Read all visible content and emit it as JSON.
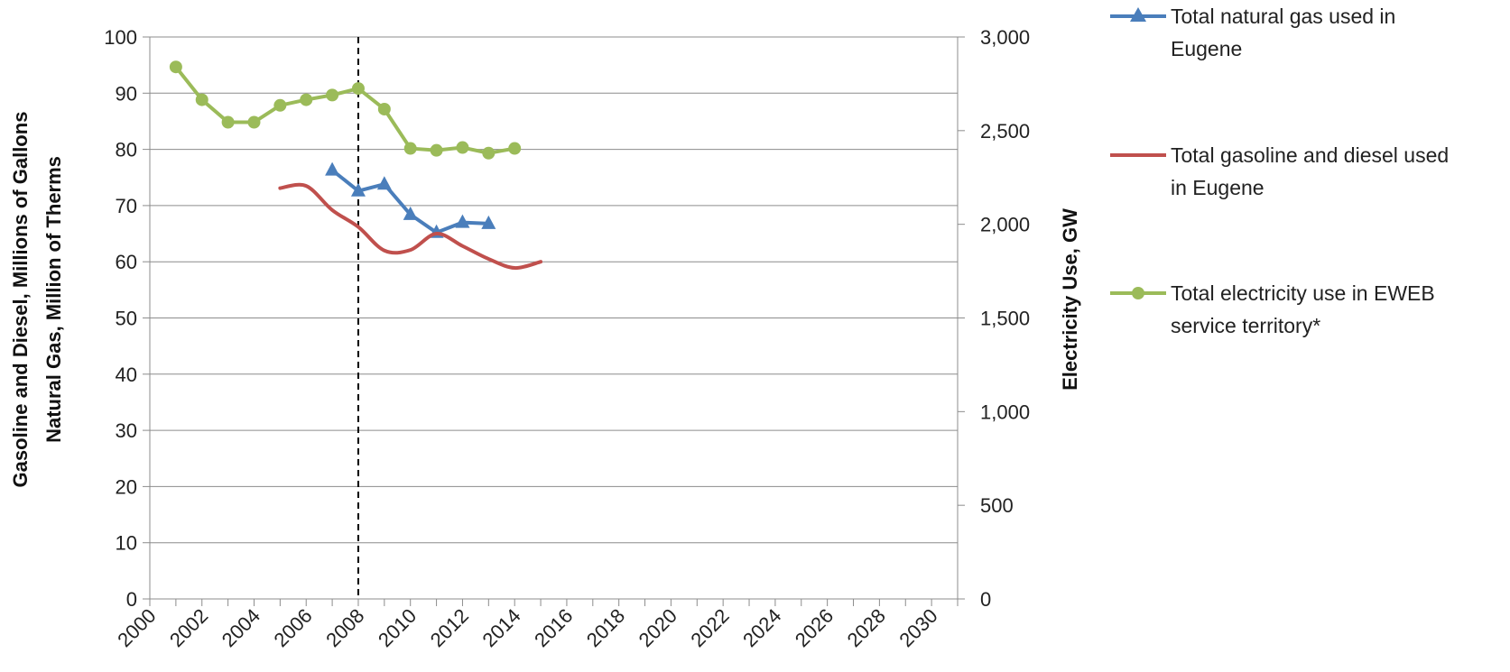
{
  "chart_data": {
    "type": "line",
    "x_axis": {
      "range": [
        2000,
        2031
      ],
      "tick_labels": [
        "2000",
        "2002",
        "2004",
        "2006",
        "2008",
        "2010",
        "2012",
        "2014",
        "2016",
        "2018",
        "2020",
        "2022",
        "2024",
        "2026",
        "2028",
        "2030"
      ]
    },
    "y_axis_left": {
      "label_line1": "Gasoline and Diesel, Millions of Gallons",
      "label_line2": "Natural Gas, Million of Therms",
      "range": [
        0,
        100
      ],
      "tick_labels": [
        "0",
        "10",
        "20",
        "30",
        "40",
        "50",
        "60",
        "70",
        "80",
        "90",
        "100"
      ]
    },
    "y_axis_right": {
      "label": "Electricity Use, GW",
      "range": [
        0,
        3000
      ],
      "tick_labels": [
        "0",
        "500",
        "1,000",
        "1,500",
        "2,000",
        "2,500",
        "3,000"
      ]
    },
    "grid": true,
    "reference_line": {
      "x": 2008,
      "style": "dashed",
      "color": "#000000"
    },
    "legend_position": "right",
    "series": [
      {
        "name_line1": "Total natural gas used in",
        "name_line2": "Eugene",
        "axis": "left",
        "marker": "triangle",
        "color": "#4a7ebb",
        "smooth": false,
        "x": [
          2007,
          2008,
          2009,
          2010,
          2011,
          2012,
          2013
        ],
        "y": [
          76.3,
          72.6,
          73.8,
          68.4,
          65.2,
          67.0,
          66.8
        ]
      },
      {
        "name_line1": "Total gasoline and diesel used",
        "name_line2": "in Eugene",
        "axis": "left",
        "marker": "none",
        "color": "#c0504d",
        "smooth": true,
        "x": [
          2005,
          2006,
          2007,
          2008,
          2009,
          2010,
          2011,
          2012,
          2013,
          2014,
          2015
        ],
        "y": [
          73.1,
          73.5,
          69.2,
          66.2,
          62.0,
          62.1,
          65.0,
          62.8,
          60.5,
          58.9,
          60.0
        ]
      },
      {
        "name_line1": "Total electricity use in EWEB",
        "name_line2": "service territory*",
        "axis": "right",
        "marker": "circle",
        "color": "#9bbb59",
        "smooth": false,
        "x": [
          2001,
          2002,
          2003,
          2004,
          2005,
          2006,
          2007,
          2008,
          2009,
          2010,
          2011,
          2012,
          2013,
          2014
        ],
        "y": [
          2840,
          2665,
          2545,
          2545,
          2635,
          2665,
          2690,
          2725,
          2615,
          2405,
          2395,
          2410,
          2380,
          2405
        ]
      }
    ]
  }
}
